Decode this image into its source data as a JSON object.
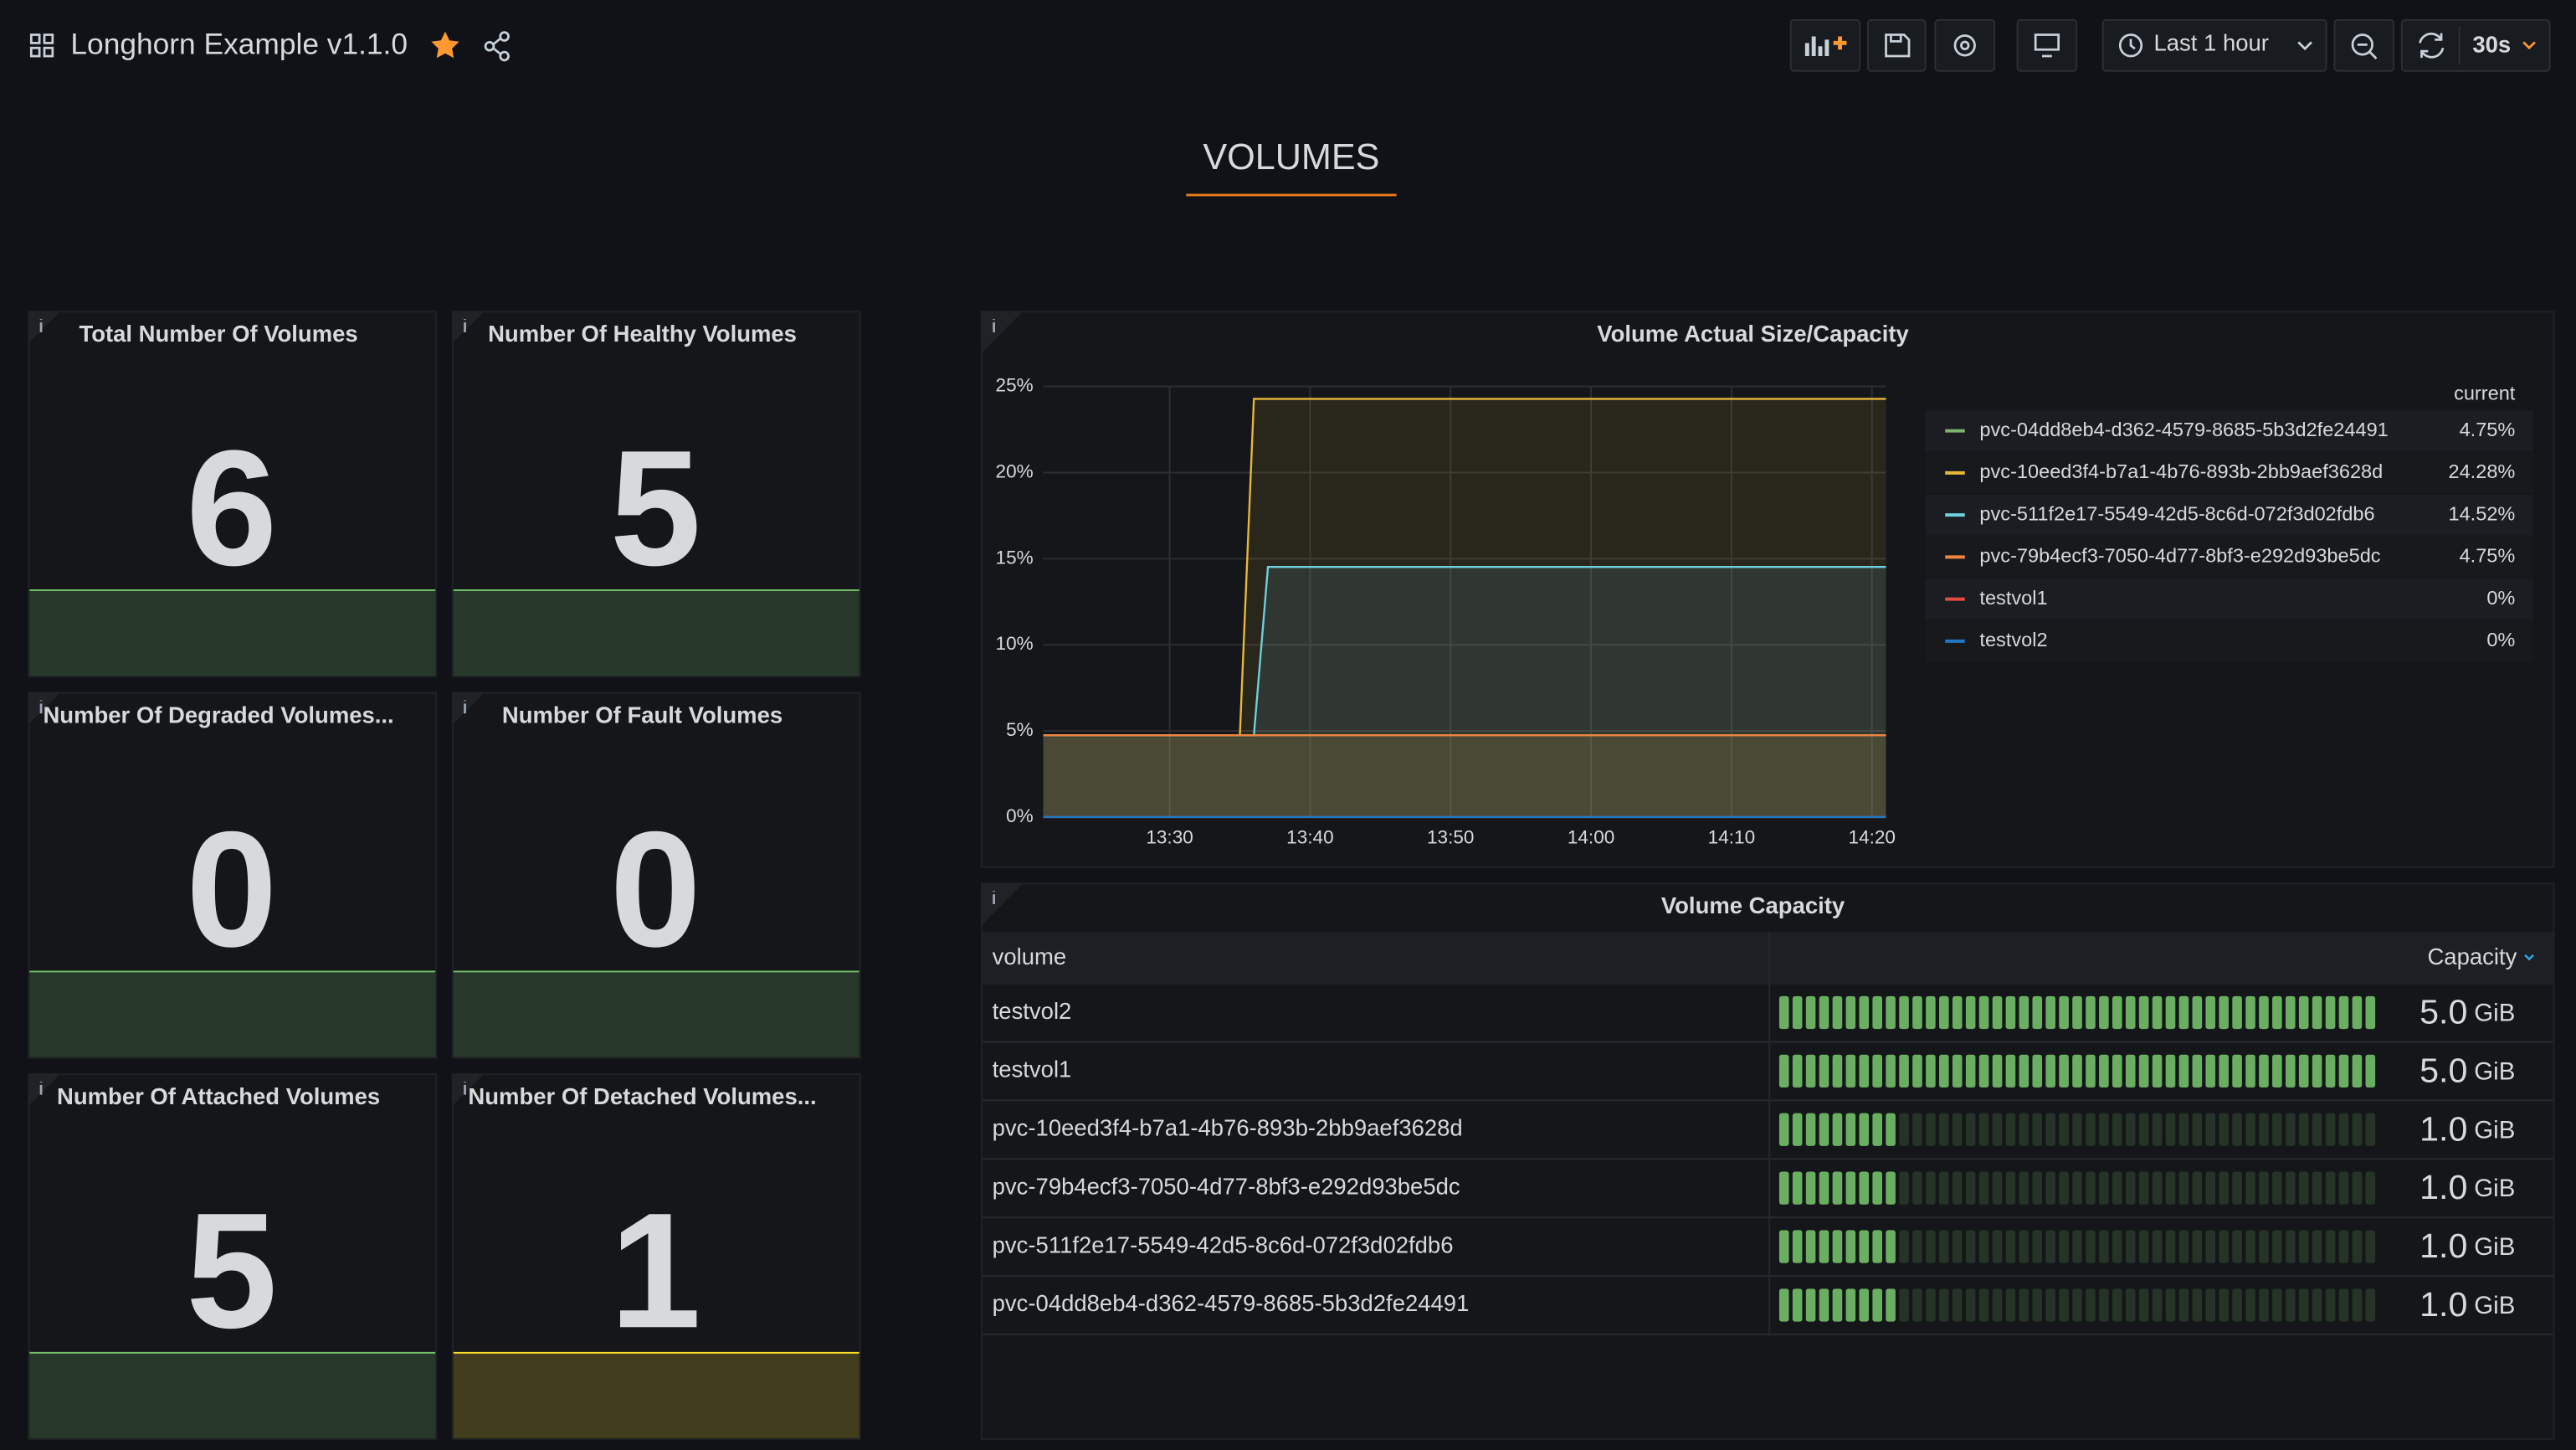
{
  "header": {
    "title": "Longhorn Example v1.1.0",
    "time_range": "Last 1 hour",
    "refresh": "30s"
  },
  "row_title": "VOLUMES",
  "stats": [
    {
      "title": "Total Number Of Volumes",
      "value": 6,
      "color": "#73bf69"
    },
    {
      "title": "Number Of Healthy Volumes",
      "value": 5,
      "color": "#73bf69"
    },
    {
      "title": "Number Of Degraded Volumes...",
      "value": 0,
      "color": "#73bf69"
    },
    {
      "title": "Number Of Fault Volumes",
      "value": 0,
      "color": "#73bf69"
    },
    {
      "title": "Number Of Attached Volumes",
      "value": 5,
      "color": "#73bf69"
    },
    {
      "title": "Number Of Detached Volumes...",
      "value": 1,
      "color": "#fade2a"
    }
  ],
  "chart_data": {
    "type": "line",
    "title": "Volume Actual Size/Capacity",
    "x": [
      "13:21",
      "13:35",
      "13:36",
      "13:37",
      "14:21"
    ],
    "xlim": [
      "13:21",
      "14:21"
    ],
    "xticks": [
      "13:30",
      "13:40",
      "13:50",
      "14:00",
      "14:10",
      "14:20"
    ],
    "ylim": [
      0,
      25
    ],
    "yticks": [
      {
        "value": 0,
        "label": "0%"
      },
      {
        "value": 5,
        "label": "5%"
      },
      {
        "value": 10,
        "label": "10%"
      },
      {
        "value": 15,
        "label": "15%"
      },
      {
        "value": 20,
        "label": "20%"
      },
      {
        "value": 25,
        "label": "25%"
      }
    ],
    "grid": true,
    "legend_header": "current",
    "series": [
      {
        "name": "pvc-04dd8eb4-d362-4579-8685-5b3d2fe24491",
        "color": "#7eb26d",
        "values": [
          4.75,
          4.75,
          4.75,
          4.75,
          4.75
        ],
        "current": {
          "value": 4.75,
          "label": "4.75%"
        }
      },
      {
        "name": "pvc-10eed3f4-b7a1-4b76-893b-2bb9aef3628d",
        "color": "#eab839",
        "values": [
          4.75,
          4.75,
          24.28,
          24.28,
          24.28
        ],
        "current": {
          "value": 24.28,
          "label": "24.28%"
        }
      },
      {
        "name": "pvc-511f2e17-5549-42d5-8c6d-072f3d02fdb6",
        "color": "#6ed0e0",
        "values": [
          4.75,
          4.75,
          4.75,
          14.52,
          14.52
        ],
        "current": {
          "value": 14.52,
          "label": "14.52%"
        }
      },
      {
        "name": "pvc-79b4ecf3-7050-4d77-8bf3-e292d93be5dc",
        "color": "#ef843c",
        "values": [
          4.75,
          4.75,
          4.75,
          4.75,
          4.75
        ],
        "current": {
          "value": 4.75,
          "label": "4.75%"
        }
      },
      {
        "name": "testvol1",
        "color": "#e24d42",
        "values": [
          0,
          0,
          0,
          0,
          0
        ],
        "current": {
          "value": 0,
          "label": "0%"
        }
      },
      {
        "name": "testvol2",
        "color": "#1f78c1",
        "values": [
          0,
          0,
          0,
          0,
          0
        ],
        "current": {
          "value": 0,
          "label": "0%"
        }
      }
    ]
  },
  "table": {
    "title": "Volume Capacity",
    "columns": [
      "volume",
      "Capacity"
    ],
    "rows": [
      {
        "volume": "testvol2",
        "capacity": {
          "value": 5,
          "label": "5.0",
          "unit": "GiB"
        }
      },
      {
        "volume": "testvol1",
        "capacity": {
          "value": 5,
          "label": "5.0",
          "unit": "GiB"
        }
      },
      {
        "volume": "pvc-10eed3f4-b7a1-4b76-893b-2bb9aef3628d",
        "capacity": {
          "value": 1,
          "label": "1.0",
          "unit": "GiB"
        }
      },
      {
        "volume": "pvc-79b4ecf3-7050-4d77-8bf3-e292d93be5dc",
        "capacity": {
          "value": 1,
          "label": "1.0",
          "unit": "GiB"
        }
      },
      {
        "volume": "pvc-511f2e17-5549-42d5-8c6d-072f3d02fdb6",
        "capacity": {
          "value": 1,
          "label": "1.0",
          "unit": "GiB"
        }
      },
      {
        "volume": "pvc-04dd8eb4-d362-4579-8685-5b3d2fe24491",
        "capacity": {
          "value": 1,
          "label": "1.0",
          "unit": "GiB"
        }
      }
    ]
  }
}
